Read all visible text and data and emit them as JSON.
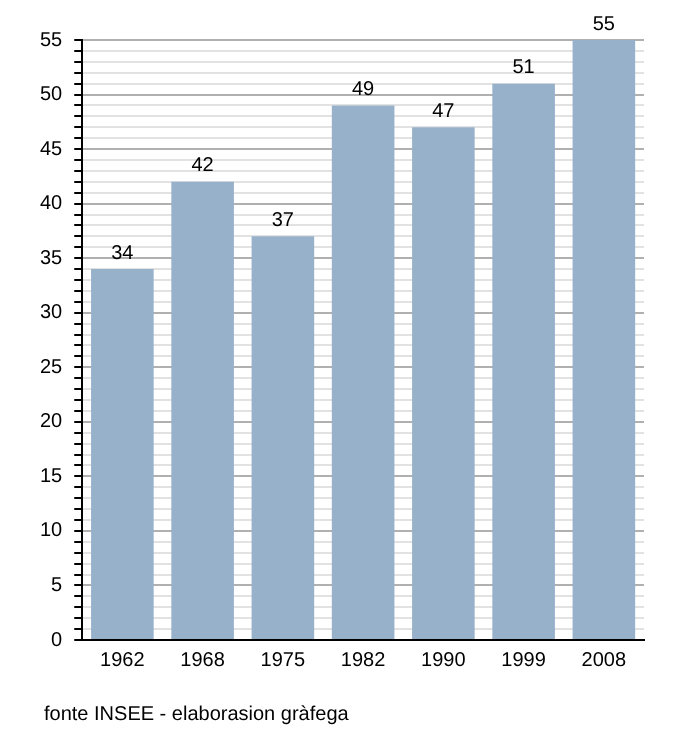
{
  "chart_data": {
    "type": "bar",
    "categories": [
      "1962",
      "1968",
      "1975",
      "1982",
      "1990",
      "1999",
      "2008"
    ],
    "values": [
      34,
      42,
      37,
      49,
      47,
      51,
      55
    ],
    "color": "#97b1cb",
    "ylim": [
      0,
      55
    ],
    "yticks": [
      0,
      {
        "value": 1,
        "label": null
      },
      {
        "value": 2,
        "label": null
      },
      {
        "value": 3,
        "label": null
      },
      {
        "value": 4,
        "label": null
      },
      5,
      {
        "value": 6,
        "label": null
      },
      {
        "value": 7,
        "label": null
      },
      {
        "value": 8,
        "label": null
      },
      {
        "value": 9,
        "label": null
      },
      10,
      {
        "value": 11,
        "label": null
      },
      {
        "value": 12,
        "label": null
      },
      {
        "value": 13,
        "label": null
      },
      {
        "value": 14,
        "label": null
      },
      15,
      {
        "value": 16,
        "label": null
      },
      {
        "value": 17,
        "label": null
      },
      {
        "value": 18,
        "label": null
      },
      {
        "value": 19,
        "label": null
      },
      20,
      {
        "value": 21,
        "label": null
      },
      {
        "value": 22,
        "label": null
      },
      {
        "value": 23,
        "label": null
      },
      {
        "value": 24,
        "label": null
      },
      25,
      {
        "value": 26,
        "label": null
      },
      {
        "value": 27,
        "label": null
      },
      {
        "value": 28,
        "label": null
      },
      {
        "value": 29,
        "label": null
      },
      30,
      {
        "value": 31,
        "label": null
      },
      {
        "value": 32,
        "label": null
      },
      {
        "value": 33,
        "label": null
      },
      {
        "value": 34,
        "label": null
      },
      35,
      {
        "value": 36,
        "label": null
      },
      {
        "value": 37,
        "label": null
      },
      {
        "value": 38,
        "label": null
      },
      {
        "value": 39,
        "label": null
      },
      40,
      {
        "value": 41,
        "label": null
      },
      {
        "value": 42,
        "label": null
      },
      {
        "value": 43,
        "label": null
      },
      {
        "value": 44,
        "label": null
      },
      45,
      {
        "value": 46,
        "label": null
      },
      {
        "value": 47,
        "label": null
      },
      {
        "value": 48,
        "label": null
      },
      {
        "value": 49,
        "label": null
      },
      50,
      {
        "value": 51,
        "label": null
      },
      {
        "value": 52,
        "label": null
      },
      {
        "value": 53,
        "label": null
      },
      {
        "value": 54,
        "label": null
      },
      55
    ],
    "grid": "y",
    "data_labels": true,
    "annotations": [
      "fonte INSEE - elaborasion gràfega"
    ]
  }
}
